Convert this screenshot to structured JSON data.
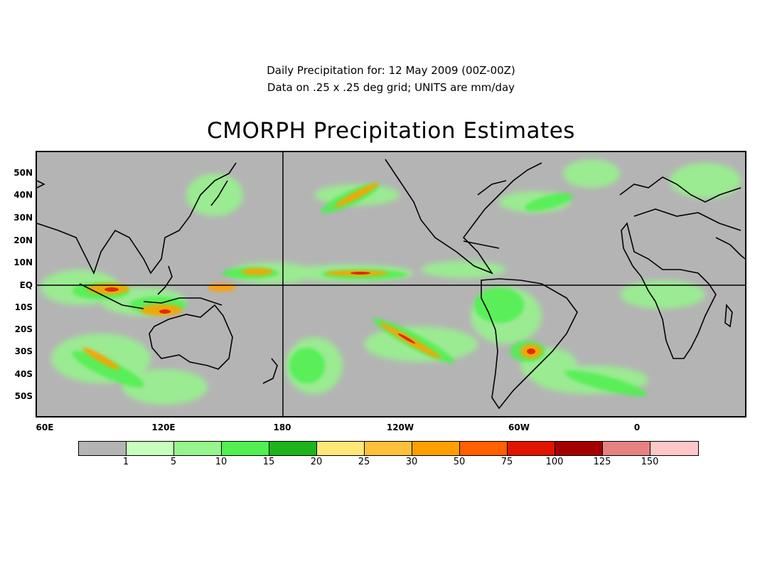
{
  "header": {
    "line1": "Daily Precipitation for: 12 May 2009 (00Z-00Z)",
    "line2": "Data on .25 x .25 deg grid; UNITS are mm/day",
    "title": "CMORPH Precipitation Estimates"
  },
  "map": {
    "lat_labels": [
      "50N",
      "40N",
      "30N",
      "20N",
      "10N",
      "EQ",
      "10S",
      "20S",
      "30S",
      "40S",
      "50S"
    ],
    "lon_labels": [
      "60E",
      "120E",
      "180",
      "120W",
      "60W",
      "0"
    ],
    "land_color": "#b4b4b4",
    "coastline_color": "#000000"
  },
  "colorbar": {
    "colors": [
      "#b4b4b4",
      "#c8ffbe",
      "#96f58c",
      "#50f050",
      "#1eb41e",
      "#ffe878",
      "#ffc03c",
      "#ffa000",
      "#ff6000",
      "#e11400",
      "#a50000",
      "#e68282",
      "#ffc8c8"
    ],
    "labels": [
      "1",
      "5",
      "10",
      "15",
      "20",
      "25",
      "30",
      "50",
      "75",
      "100",
      "125",
      "150"
    ]
  }
}
